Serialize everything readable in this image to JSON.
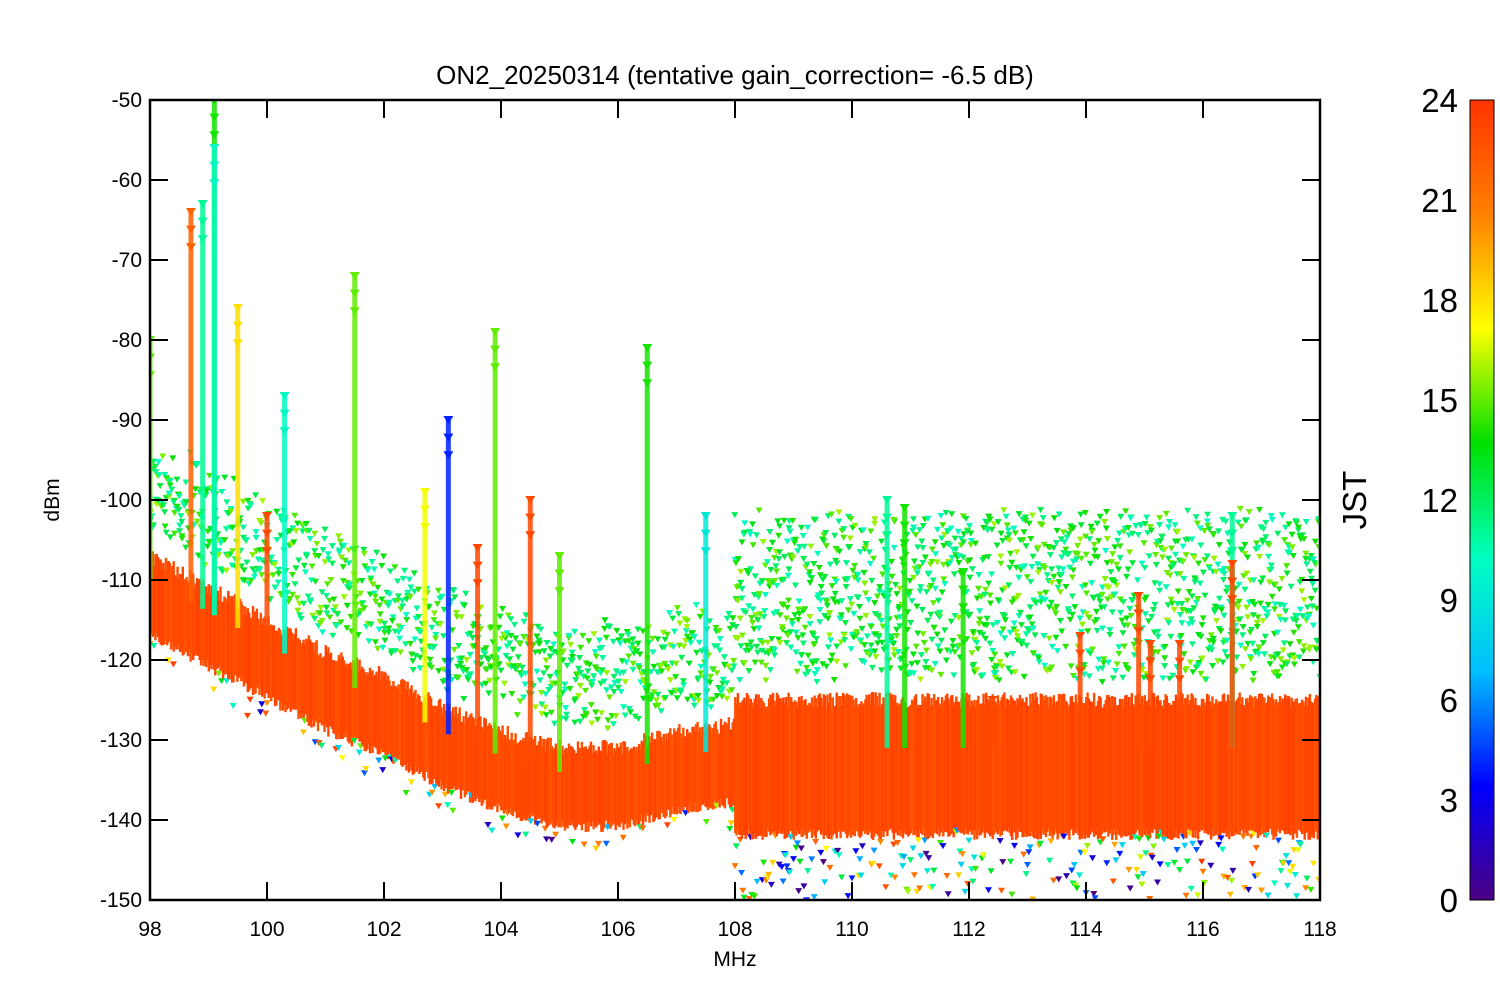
{
  "chart_data": {
    "type": "scatter",
    "title": "ON2_20250314 (tentative gain_correction= -6.5 dB)",
    "xlabel": "MHz",
    "ylabel": "dBm",
    "xlim": [
      98,
      118
    ],
    "ylim": [
      -150,
      -50
    ],
    "x_ticks": [
      "98",
      "100",
      "102",
      "104",
      "106",
      "108",
      "110",
      "112",
      "114",
      "116",
      "118"
    ],
    "y_ticks": [
      "-50",
      "-60",
      "-70",
      "-80",
      "-90",
      "-100",
      "-110",
      "-120",
      "-130",
      "-140",
      "-150"
    ],
    "marker": "inverted-triangle",
    "grid": false,
    "colorbar": {
      "title": "JST",
      "range": [
        0,
        24
      ],
      "ticks": [
        "24",
        "21",
        "18",
        "15",
        "12",
        "9",
        "6",
        "3",
        "0"
      ],
      "colormap": "rainbow",
      "colors": [
        "#4b0082",
        "#0000ff",
        "#00bfff",
        "#00ffbf",
        "#00e000",
        "#ffff00",
        "#ff8000",
        "#ff3300"
      ]
    },
    "noise_floor": [
      {
        "x": 98.0,
        "y": -114
      },
      {
        "x": 99.0,
        "y": -118
      },
      {
        "x": 100.0,
        "y": -122
      },
      {
        "x": 101.0,
        "y": -126
      },
      {
        "x": 102.0,
        "y": -129
      },
      {
        "x": 103.0,
        "y": -133
      },
      {
        "x": 104.0,
        "y": -136
      },
      {
        "x": 105.0,
        "y": -138
      },
      {
        "x": 106.0,
        "y": -138
      },
      {
        "x": 107.0,
        "y": -136
      },
      {
        "x": 108.0,
        "y": -135
      },
      {
        "x": 118.0,
        "y": -135
      }
    ],
    "peaks": [
      {
        "x": 98.0,
        "y": -80,
        "jst": 15
      },
      {
        "x": 98.7,
        "y": -64,
        "jst": 22
      },
      {
        "x": 98.9,
        "y": -63,
        "jst": 11
      },
      {
        "x": 99.1,
        "y": -50,
        "jst": 14
      },
      {
        "x": 99.1,
        "y": -56,
        "jst": 10
      },
      {
        "x": 99.5,
        "y": -76,
        "jst": 18
      },
      {
        "x": 100.0,
        "y": -102,
        "jst": 23
      },
      {
        "x": 100.3,
        "y": -87,
        "jst": 10
      },
      {
        "x": 101.5,
        "y": -72,
        "jst": 15
      },
      {
        "x": 102.7,
        "y": -99,
        "jst": 17
      },
      {
        "x": 103.1,
        "y": -90,
        "jst": 4
      },
      {
        "x": 103.6,
        "y": -106,
        "jst": 23
      },
      {
        "x": 103.9,
        "y": -79,
        "jst": 15
      },
      {
        "x": 104.5,
        "y": -100,
        "jst": 23
      },
      {
        "x": 105.0,
        "y": -107,
        "jst": 15
      },
      {
        "x": 106.5,
        "y": -81,
        "jst": 14
      },
      {
        "x": 107.5,
        "y": -102,
        "jst": 9
      },
      {
        "x": 110.6,
        "y": -100,
        "jst": 11
      },
      {
        "x": 110.9,
        "y": -101,
        "jst": 14
      },
      {
        "x": 111.9,
        "y": -109,
        "jst": 14
      },
      {
        "x": 112.4,
        "y": -125,
        "jst": 23
      },
      {
        "x": 113.9,
        "y": -117,
        "jst": 23
      },
      {
        "x": 114.9,
        "y": -112,
        "jst": 23
      },
      {
        "x": 115.1,
        "y": -118,
        "jst": 23
      },
      {
        "x": 115.6,
        "y": -118,
        "jst": 23
      },
      {
        "x": 116.5,
        "y": -102,
        "jst": 11
      },
      {
        "x": 116.5,
        "y": -108,
        "jst": 23
      }
    ]
  }
}
